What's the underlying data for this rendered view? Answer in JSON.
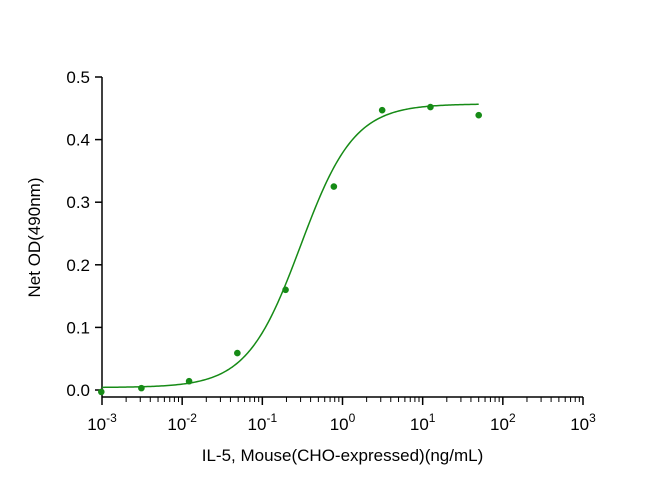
{
  "chart_data": {
    "type": "scatter",
    "xlabel": "IL-5, Mouse(CHO-expressed)(ng/mL)",
    "ylabel": "Net OD(490nm)",
    "xscale": "log",
    "xlim": [
      0.001,
      1000
    ],
    "ylim": [
      0.0,
      0.5
    ],
    "x_ticks": [
      {
        "base": "10",
        "exp": "-3"
      },
      {
        "base": "10",
        "exp": "-2"
      },
      {
        "base": "10",
        "exp": "-1"
      },
      {
        "base": "10",
        "exp": "0"
      },
      {
        "base": "10",
        "exp": "1"
      },
      {
        "base": "10",
        "exp": "2"
      },
      {
        "base": "10",
        "exp": "3"
      }
    ],
    "y_ticks": [
      "0.0",
      "0.1",
      "0.2",
      "0.3",
      "0.4",
      "0.5"
    ],
    "grid": false,
    "color": "#168b16",
    "series": [
      {
        "points": [
          {
            "x": 0.00098,
            "y": -0.003
          },
          {
            "x": 0.0031,
            "y": 0.003
          },
          {
            "x": 0.0122,
            "y": 0.014
          },
          {
            "x": 0.0488,
            "y": 0.059
          },
          {
            "x": 0.195,
            "y": 0.16
          },
          {
            "x": 0.78,
            "y": 0.325
          },
          {
            "x": 3.125,
            "y": 0.447
          },
          {
            "x": 12.5,
            "y": 0.452
          },
          {
            "x": 50,
            "y": 0.439
          }
        ],
        "fit": {
          "model": "4PL",
          "bottom": 0.004,
          "top": 0.457,
          "ec50": 0.3,
          "hill": 1.3,
          "x_range": [
            0.001,
            50
          ]
        }
      }
    ]
  }
}
